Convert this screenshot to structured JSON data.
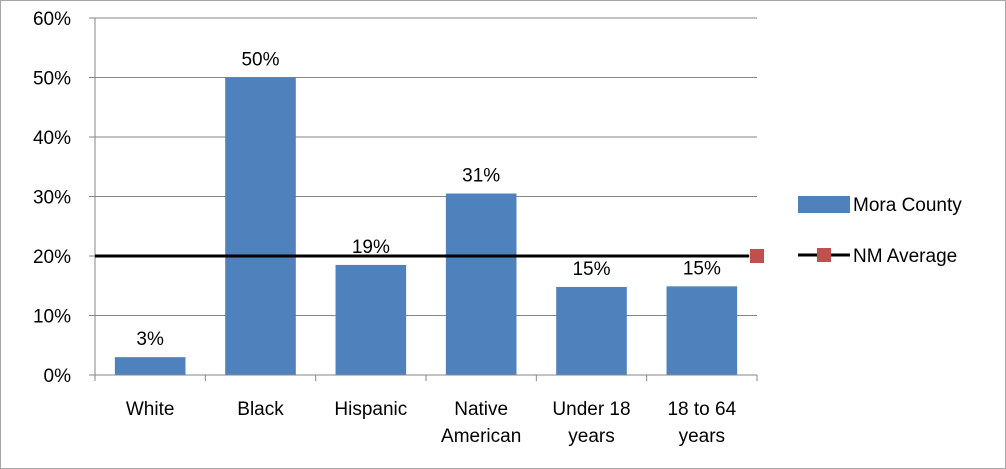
{
  "chart_data": {
    "type": "bar",
    "categories": [
      [
        "White"
      ],
      [
        "Black"
      ],
      [
        "Hispanic"
      ],
      [
        "Native",
        "American"
      ],
      [
        "Under 18",
        "years"
      ],
      [
        "18 to 64",
        "years"
      ]
    ],
    "series": [
      {
        "name": "Mora County",
        "values": [
          3,
          50,
          18.5,
          30.5,
          14.8,
          14.9
        ],
        "data_labels": [
          "3%",
          "50%",
          "19%",
          "31%",
          "15%",
          "15%"
        ],
        "color": "#4F81BD"
      }
    ],
    "reference_line": {
      "name": "NM Average",
      "value": 20,
      "line_color": "#000000",
      "marker_color": "#C0504D"
    },
    "ylim": [
      0,
      60
    ],
    "yticks": [
      0,
      10,
      20,
      30,
      40,
      50,
      60
    ],
    "ytick_labels": [
      "0%",
      "10%",
      "20%",
      "30%",
      "40%",
      "50%",
      "60%"
    ],
    "grid": true,
    "legend_position": "right"
  }
}
